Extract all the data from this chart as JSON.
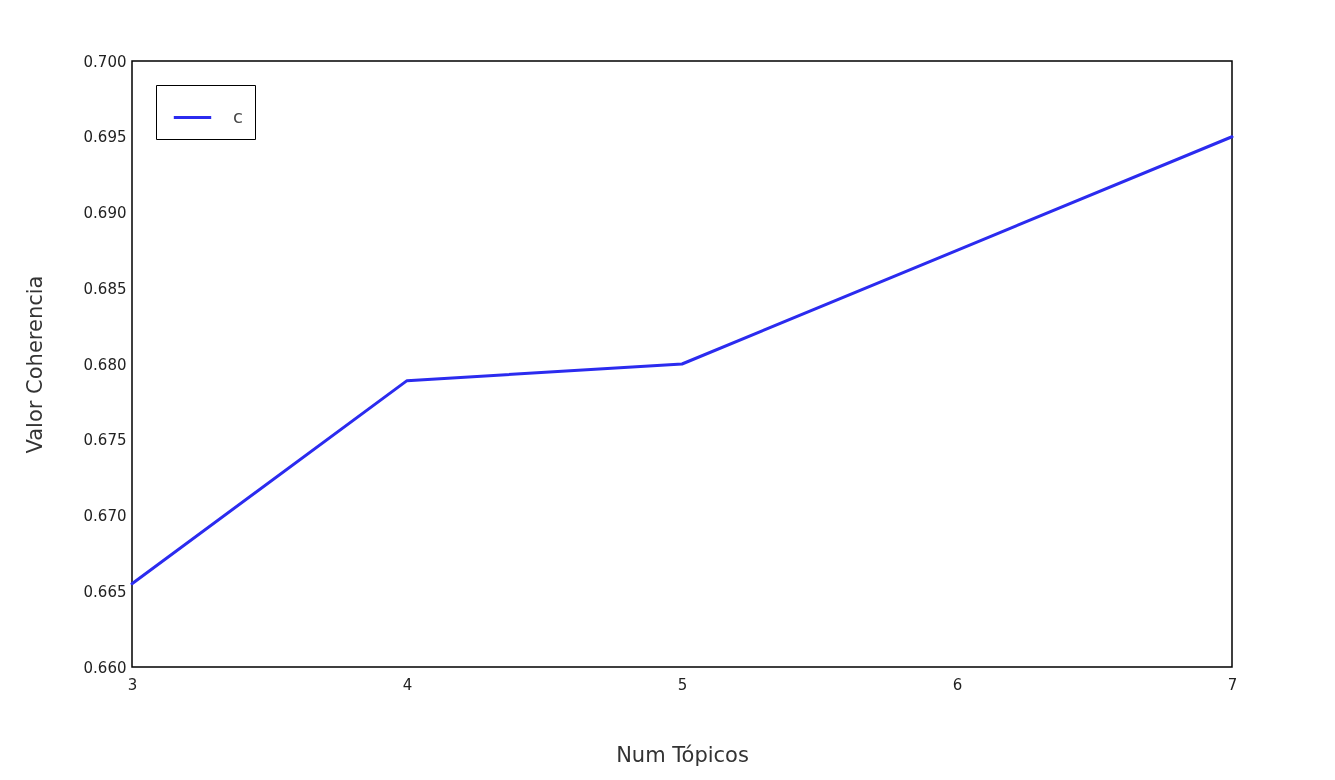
{
  "chart_data": {
    "type": "line",
    "xlabel": "Num Tópicos",
    "ylabel": "Valor Coherencia",
    "x": [
      3,
      4,
      5,
      6,
      7
    ],
    "series": [
      {
        "name": "c",
        "color": "#2b2bef",
        "values": [
          0.6655,
          0.6789,
          0.68,
          0.6875,
          0.695
        ]
      }
    ],
    "xlim": [
      3,
      7
    ],
    "xticks": [
      3,
      4,
      5,
      6,
      7
    ],
    "ylim": [
      0.66,
      0.7
    ],
    "yticks": [
      {
        "value": 0.66,
        "label": "0.660"
      },
      {
        "value": 0.665,
        "label": "0.665"
      },
      {
        "value": 0.67,
        "label": "0.670"
      },
      {
        "value": 0.675,
        "label": "0.675"
      },
      {
        "value": 0.68,
        "label": "0.680"
      },
      {
        "value": 0.685,
        "label": "0.685"
      },
      {
        "value": 0.69,
        "label": "0.690"
      },
      {
        "value": 0.695,
        "label": "0.695"
      },
      {
        "value": 0.7,
        "label": "0.700"
      }
    ],
    "grid": false,
    "legend": "top left",
    "marker": "none",
    "line_style": "solid"
  }
}
